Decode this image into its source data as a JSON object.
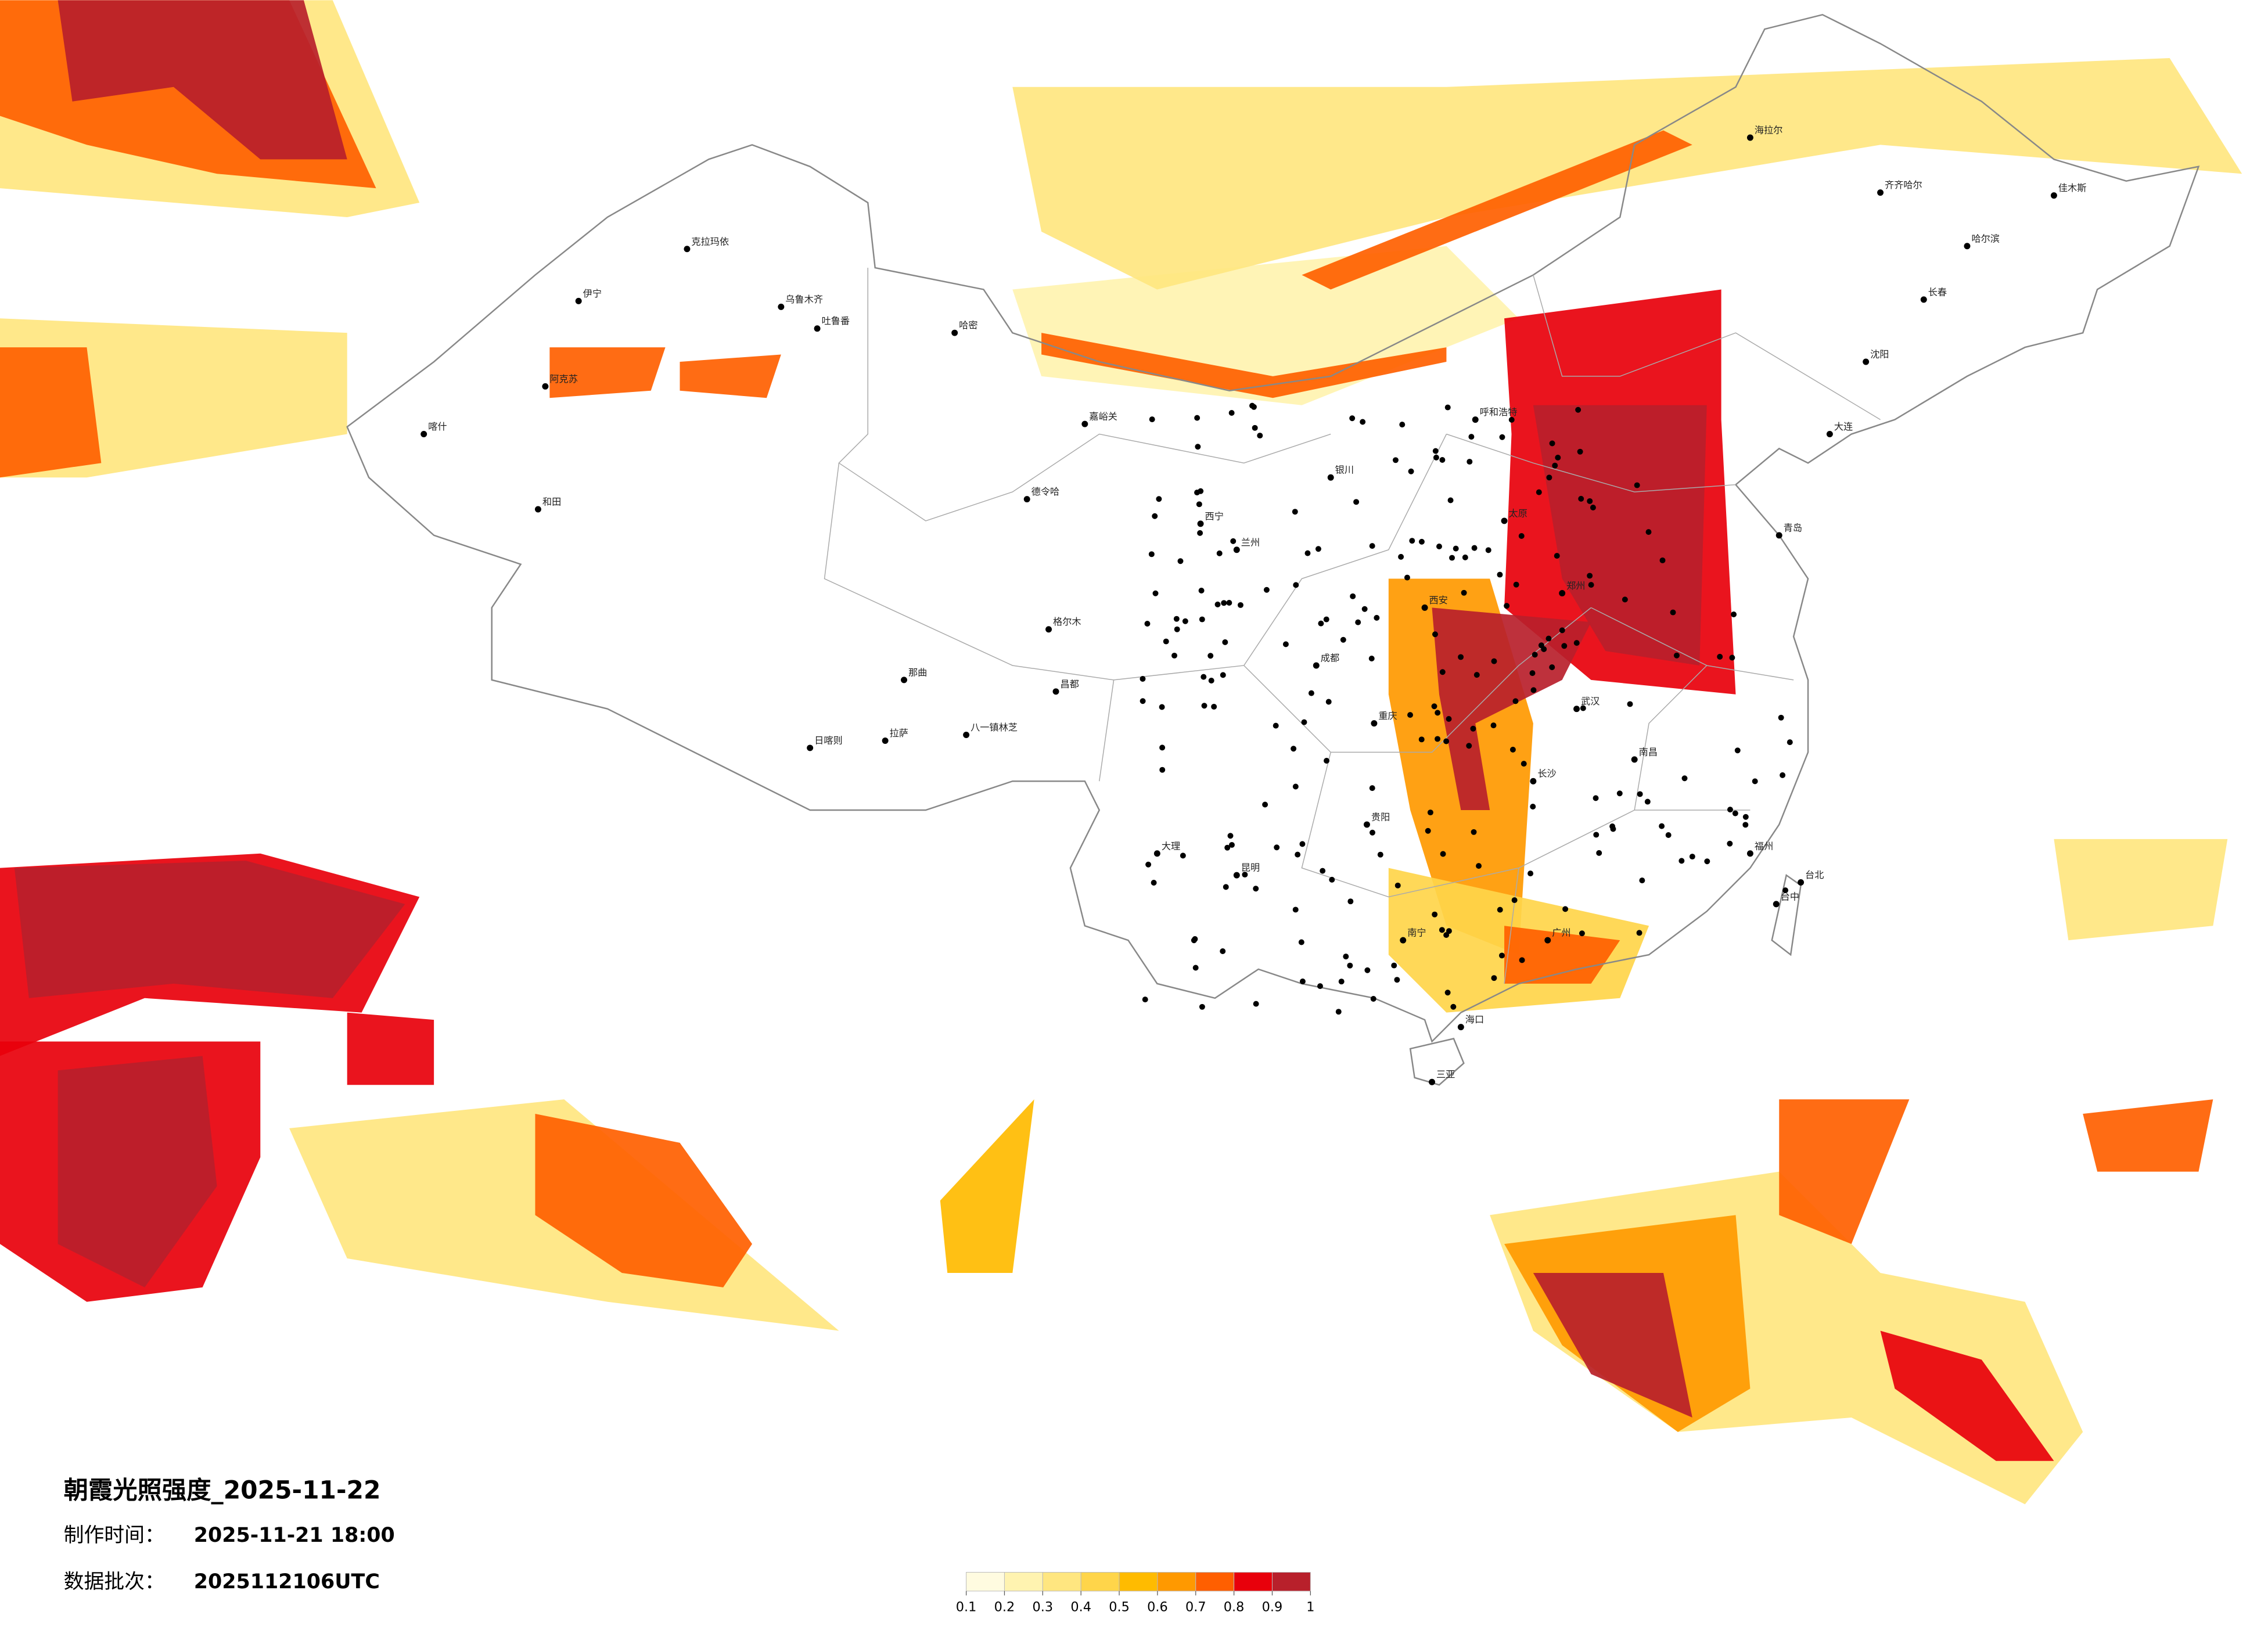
{
  "title": "朝霞光照强度_2025-11-22",
  "made_label": "制作时间：",
  "made_time": "2025-11-21 18:00",
  "batch_label": "数据批次：",
  "batch": "2025112106UTC",
  "colorbar": {
    "ticks": [
      0.1,
      0.2,
      0.3,
      0.4,
      0.5,
      0.6,
      0.7,
      0.8,
      0.9,
      1
    ],
    "colors": [
      "#fffbe0",
      "#fff3b0",
      "#ffe680",
      "#ffd54a",
      "#ffbb00",
      "#ff9900",
      "#ff5f00",
      "#e8000b",
      "#b8202b"
    ]
  },
  "cities": [
    "克拉玛依",
    "伊宁",
    "乌鲁木齐",
    "吐鲁番",
    "哈密",
    "阿克苏",
    "喀什",
    "和田",
    "嘉峪关",
    "德令哈",
    "格尔木",
    "那曲",
    "日喀则",
    "拉萨",
    "八一镇林芝",
    "昌都",
    "西宁",
    "兰州",
    "银川",
    "呼和浩特",
    "太原",
    "西安",
    "郑州",
    "武汉",
    "长沙",
    "南昌",
    "福州",
    "台北",
    "台中",
    "广州",
    "南宁",
    "海口",
    "三亚",
    "成都",
    "重庆",
    "贵阳",
    "昆明",
    "大理",
    "青岛",
    "大连",
    "沈阳",
    "长春",
    "哈尔滨",
    "齐齐哈尔",
    "海拉尔",
    "佳木斯"
  ]
}
